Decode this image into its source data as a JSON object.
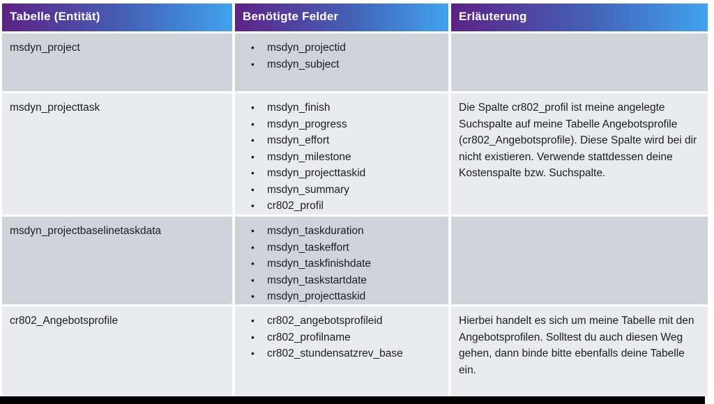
{
  "table": {
    "headers": [
      "Tabelle (Entität)",
      "Benötigte Felder",
      "Erläuterung"
    ],
    "rows": [
      {
        "entity": "msdyn_project",
        "fields": [
          "msdyn_projectid",
          "msdyn_subject"
        ],
        "note": ""
      },
      {
        "entity": "msdyn_projecttask",
        "fields": [
          "msdyn_finish",
          "msdyn_progress",
          "msdyn_effort",
          "msdyn_milestone",
          "msdyn_projecttaskid",
          "msdyn_summary",
          "cr802_profil"
        ],
        "note": "Die Spalte cr802_profil ist meine angelegte Suchspalte auf meine Tabelle Angebotsprofile (cr802_Angebotsprofile). Diese Spalte wird bei dir nicht existieren. Verwende stattdessen deine Kostenspalte bzw. Suchspalte."
      },
      {
        "entity": "msdyn_projectbaselinetaskdata",
        "fields": [
          "msdyn_taskduration",
          "msdyn_taskeffort",
          "msdyn_taskfinishdate",
          "msdyn_taskstartdate",
          "msdyn_projecttaskid"
        ],
        "note": ""
      },
      {
        "entity": "cr802_Angebotsprofile",
        "fields": [
          "cr802_angebotsprofileid",
          "cr802_profilname",
          "cr802_stundensatzrev_base"
        ],
        "note": "Hierbei handelt es sich um meine Tabelle mit den Angebotsprofilen. Solltest du auch diesen Weg gehen, dann binde bitte ebenfalls deine Tabelle ein."
      }
    ],
    "colors": {
      "header_gradient_start": "#5d2286",
      "header_gradient_end": "#41a3ed",
      "band_dark": "#cfd4da",
      "band_light": "#e9ebee",
      "header_text": "#ffffff",
      "body_text": "#1c1c1e",
      "bottom_bar": "#000000"
    }
  }
}
